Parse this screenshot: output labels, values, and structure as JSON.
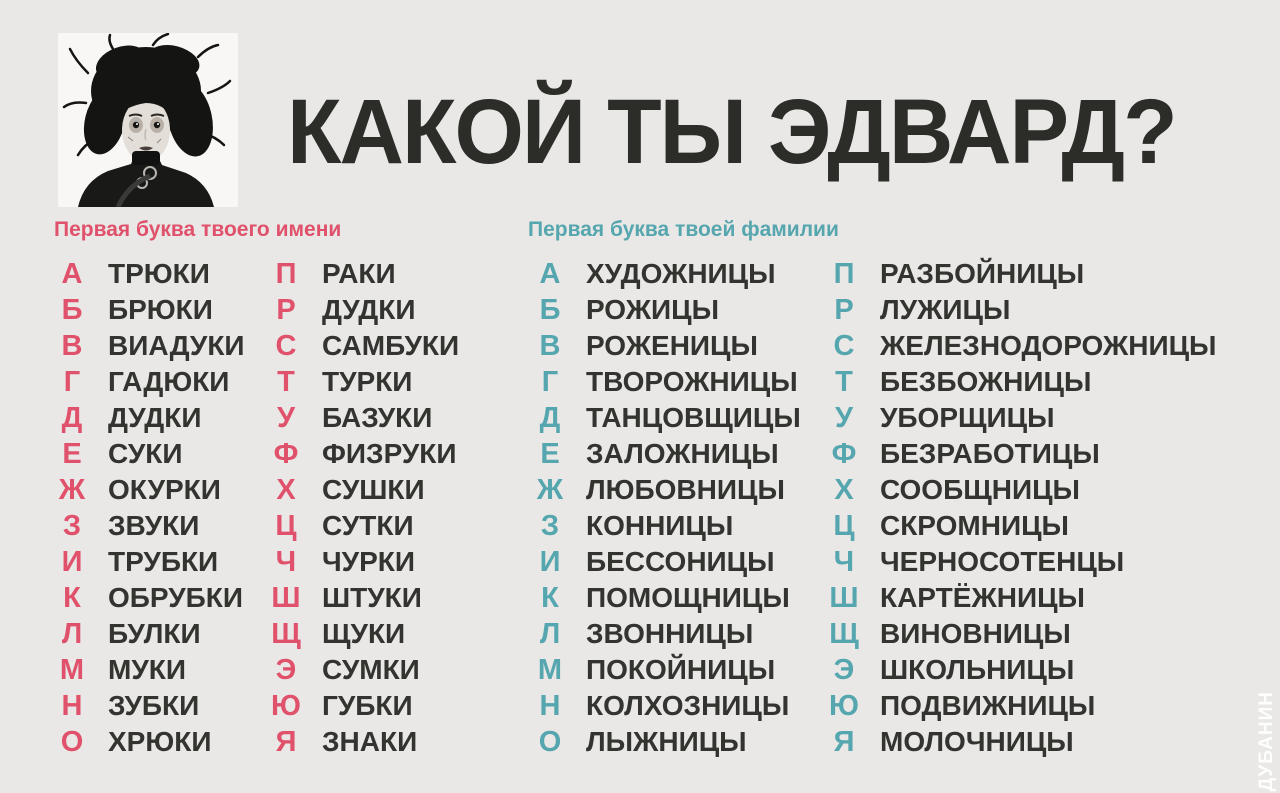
{
  "title": "КАКОЙ ТЫ ЭДВАРД?",
  "watermark": "ДУБАНИН",
  "colors": {
    "background": "#e9e8e6",
    "title_text": "#2c2c28",
    "word_text": "#33332f",
    "name_accent": "#e0516b",
    "surname_accent": "#55a6ae",
    "photo_background": "#f8f7f5"
  },
  "sections": [
    {
      "id": "first-name",
      "header": "Первая буква твоего имени",
      "accent": "#e0516b",
      "columns": [
        {
          "entries": [
            {
              "letter": "А",
              "word": "ТРЮКИ"
            },
            {
              "letter": "Б",
              "word": "БРЮКИ"
            },
            {
              "letter": "В",
              "word": "ВИАДУКИ"
            },
            {
              "letter": "Г",
              "word": "ГАДЮКИ"
            },
            {
              "letter": "Д",
              "word": "ДУДКИ"
            },
            {
              "letter": "Е",
              "word": "СУКИ"
            },
            {
              "letter": "Ж",
              "word": "ОКУРКИ"
            },
            {
              "letter": "З",
              "word": "ЗВУКИ"
            },
            {
              "letter": "И",
              "word": "ТРУБКИ"
            },
            {
              "letter": "К",
              "word": "ОБРУБКИ"
            },
            {
              "letter": "Л",
              "word": "БУЛКИ"
            },
            {
              "letter": "М",
              "word": "МУКИ"
            },
            {
              "letter": "Н",
              "word": "ЗУБКИ"
            },
            {
              "letter": "О",
              "word": "ХРЮКИ"
            }
          ]
        },
        {
          "entries": [
            {
              "letter": "П",
              "word": "РАКИ"
            },
            {
              "letter": "Р",
              "word": "ДУДКИ"
            },
            {
              "letter": "С",
              "word": "САМБУКИ"
            },
            {
              "letter": "Т",
              "word": "ТУРКИ"
            },
            {
              "letter": "У",
              "word": "БАЗУКИ"
            },
            {
              "letter": "Ф",
              "word": "ФИЗРУКИ"
            },
            {
              "letter": "Х",
              "word": "СУШКИ"
            },
            {
              "letter": "Ц",
              "word": "СУТКИ"
            },
            {
              "letter": "Ч",
              "word": "ЧУРКИ"
            },
            {
              "letter": "Ш",
              "word": "ШТУКИ"
            },
            {
              "letter": "Щ",
              "word": "ЩУКИ"
            },
            {
              "letter": "Э",
              "word": "СУМКИ"
            },
            {
              "letter": "Ю",
              "word": "ГУБКИ"
            },
            {
              "letter": "Я",
              "word": "ЗНАКИ"
            }
          ]
        }
      ]
    },
    {
      "id": "last-name",
      "header": "Первая буква твоей фамилии",
      "accent": "#55a6ae",
      "columns": [
        {
          "entries": [
            {
              "letter": "А",
              "word": "ХУДОЖНИЦЫ"
            },
            {
              "letter": "Б",
              "word": "РОЖИЦЫ"
            },
            {
              "letter": "В",
              "word": "РОЖЕНИЦЫ"
            },
            {
              "letter": "Г",
              "word": "ТВОРОЖНИЦЫ"
            },
            {
              "letter": "Д",
              "word": "ТАНЦОВЩИЦЫ"
            },
            {
              "letter": "Е",
              "word": "ЗАЛОЖНИЦЫ"
            },
            {
              "letter": "Ж",
              "word": "ЛЮБОВНИЦЫ"
            },
            {
              "letter": "З",
              "word": "КОННИЦЫ"
            },
            {
              "letter": "И",
              "word": "БЕССОНИЦЫ"
            },
            {
              "letter": "К",
              "word": "ПОМОЩНИЦЫ"
            },
            {
              "letter": "Л",
              "word": "ЗВОННИЦЫ"
            },
            {
              "letter": "М",
              "word": "ПОКОЙНИЦЫ"
            },
            {
              "letter": "Н",
              "word": "КОЛХОЗНИЦЫ"
            },
            {
              "letter": "О",
              "word": "ЛЫЖНИЦЫ"
            }
          ]
        },
        {
          "entries": [
            {
              "letter": "П",
              "word": "РАЗБОЙНИЦЫ"
            },
            {
              "letter": "Р",
              "word": "ЛУЖИЦЫ"
            },
            {
              "letter": "С",
              "word": "ЖЕЛЕЗНОДОРОЖНИЦЫ"
            },
            {
              "letter": "Т",
              "word": "БЕЗБОЖНИЦЫ"
            },
            {
              "letter": "У",
              "word": "УБОРЩИЦЫ"
            },
            {
              "letter": "Ф",
              "word": "БЕЗРАБОТИЦЫ"
            },
            {
              "letter": "Х",
              "word": "СООБЩНИЦЫ"
            },
            {
              "letter": "Ц",
              "word": "СКРОМНИЦЫ"
            },
            {
              "letter": "Ч",
              "word": "ЧЕРНОСОТЕНЦЫ"
            },
            {
              "letter": "Ш",
              "word": "КАРТЁЖНИЦЫ"
            },
            {
              "letter": "Щ",
              "word": "ВИНОВНИЦЫ"
            },
            {
              "letter": "Э",
              "word": "ШКОЛЬНИЦЫ"
            },
            {
              "letter": "Ю",
              "word": "ПОДВИЖНИЦЫ"
            },
            {
              "letter": "Я",
              "word": "МОЛОЧНИЦЫ"
            }
          ]
        }
      ]
    }
  ]
}
